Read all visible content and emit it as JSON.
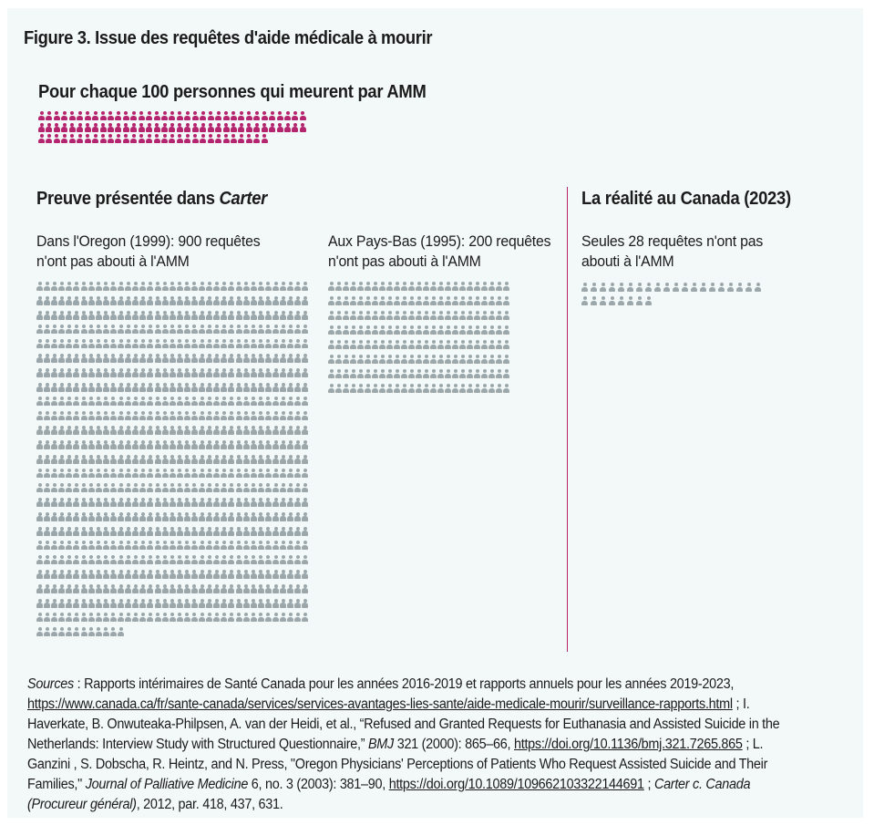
{
  "title": "Figure 3. Issue des requêtes d'aide médicale à mourir",
  "colors": {
    "background": "#f2f9f8",
    "amm": "#b5246e",
    "not_amm": "#9ba7ab",
    "divider": "#b5246e"
  },
  "icon_name": "person-icon",
  "per100_label": "Pour chaque 100 personnes qui meurent par AMM",
  "left_section": {
    "title_prefix": "Preuve présentée dans ",
    "title_italic": "Carter"
  },
  "right_section": {
    "title": "La réalité au Canada (2023)"
  },
  "chart_data": [
    {
      "type": "pictogram",
      "label": "Pour chaque 100 personnes qui meurent par AMM",
      "value": 100,
      "color": "#b5246e"
    },
    {
      "type": "pictogram",
      "label": "Dans l'Oregon (1999): 900 requêtes n'ont pas abouti à l'AMM",
      "value": 900,
      "color": "#9ba7ab"
    },
    {
      "type": "pictogram",
      "label": "Aux Pays-Bas (1995): 200 requêtes n'ont pas abouti à l'AMM",
      "value": 200,
      "color": "#9ba7ab"
    },
    {
      "type": "pictogram",
      "label": "Seules 28 requêtes n'ont pas abouti à l'AMM",
      "value": 28,
      "color": "#9ba7ab"
    }
  ],
  "sources": {
    "label": "Sources",
    "p1": " : Rapports intérimaires de Santé Canada pour les années 2016-2019 et rapports annuels pour les années 2019-2023, ",
    "link1": "https://www.canada.ca/fr/sante-canada/services/services-avantages-lies-sante/aide-medicale-mourir/surveillance-rapports.html",
    "p2": " ; I. Haverkate, B. Onwuteaka-Philpsen, A. van der Heidi, et al., “Refused and Granted Requests for Euthanasia and Assisted Suicide in the Netherlands: Interview Study with Structured Questionnaire,” ",
    "bmj": "BMJ",
    "p3": " 321 (2000): 865–66, ",
    "link2": "https://doi.org/10.1136/bmj.321.7265.865",
    "p4": " ; L. Ganzini , S. Dobscha, R. Heintz, and N. Press, \"Oregon Physicians' Perceptions of Patients Who Request Assisted Suicide and Their Families,\" ",
    "journal": "Journal of Palliative Medicine",
    "p5": " 6, no. 3 (2003): 381–90, ",
    "link3": "https://doi.org/10.1089/109662103322144691",
    "p6": " ; ",
    "case": "Carter c. Canada (Procureur général)",
    "p7": ", 2012, par. 418, 437, 631."
  }
}
